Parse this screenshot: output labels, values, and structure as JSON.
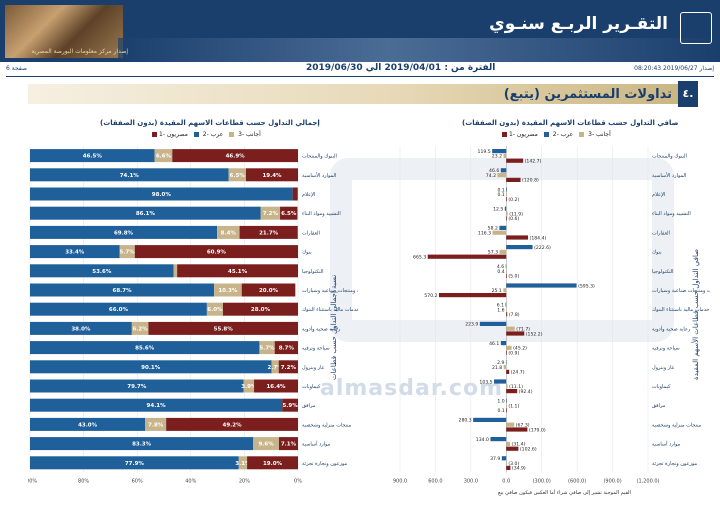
{
  "header": {
    "title": "التقـرير الربـع سنـوي",
    "subtitle": "إصدار مركز معلومات البورصة المصرية"
  },
  "meta": {
    "page": "صفحة 6",
    "period": "الفترة من : 2019/04/01 الي 2019/06/30",
    "issued": "إصدار 2019/06/27 08:20:43"
  },
  "section": {
    "number": "٤.",
    "title": "تداولات المستثمرين (يتبع)"
  },
  "watermark": "almasdar.com",
  "colors": {
    "egyptian": "#1f5f9a",
    "arab": "#c8b48a",
    "foreign": "#7a1e1e"
  },
  "sectors": [
    "البنوك والمنتجات",
    "الموارد الأساسية",
    "الإعلام",
    "التشييد ومواد البناء",
    "العقارات",
    "بنوك",
    "التكنولوجيا",
    "خدمات ومنتجات صناعية وسيارات",
    "خدمات مالية باستثناء البنوك",
    "رعاية صحية وأدوية",
    "سياحة وترفيه",
    "غاز وبترول",
    "كيماويات",
    "مرافق",
    "منتجات منزلية وشخصية",
    "موارد أساسية",
    "موزعون وتجارة تجزئة"
  ],
  "left_chart": {
    "title": "إجمالي التداول حسب قطاعات الاسهم المقيدة (بدون الصفقات)",
    "legend": [
      "مصريون -1",
      "عرب -2",
      "أجانب -3"
    ],
    "side_label": "نسبة إجمالي التداول حسب قطاعات",
    "x_ticks": [
      "100%",
      "80%",
      "60%",
      "40%",
      "20%",
      "0%"
    ],
    "chart_data": {
      "type": "bar",
      "series": [
        {
          "name": "مصريون -1",
          "values": [
            46.5,
            74.1,
            98.0,
            86.1,
            69.8,
            33.4,
            53.6,
            68.7,
            66.0,
            38.0,
            85.6,
            90.1,
            79.7,
            94.1,
            43.0,
            83.3,
            77.9
          ]
        },
        {
          "name": "عرب -2",
          "values": [
            6.6,
            6.5,
            0.0,
            7.2,
            8.4,
            5.7,
            1.3,
            10.3,
            6.0,
            6.2,
            5.7,
            2.7,
            3.9,
            0.0,
            7.8,
            9.6,
            3.1
          ]
        },
        {
          "name": "أجانب -3",
          "values": [
            46.9,
            19.4,
            1.9,
            6.5,
            21.7,
            60.9,
            45.1,
            20.0,
            28.0,
            55.8,
            8.7,
            7.2,
            16.4,
            5.9,
            49.2,
            7.1,
            19.0
          ]
        }
      ],
      "data_labels": [
        [
          "46.5%",
          "6.6%",
          "46.9%"
        ],
        [
          "74.1%",
          "6.5%",
          "19.4%"
        ],
        [
          "98.0%",
          "",
          "1.9%"
        ],
        [
          "86.1%",
          "7.2%",
          "6.5%"
        ],
        [
          "69.8%",
          "8.4%",
          "21.7%"
        ],
        [
          "33.4%",
          "5.7%",
          "60.9%"
        ],
        [
          "53.6%",
          "1.3%",
          "45.1%"
        ],
        [
          "68.7%",
          "10.3%",
          "20.0%"
        ],
        [
          "66.0%",
          "6.0%",
          "28.0%"
        ],
        [
          "38.0%",
          "6.2%",
          "55.8%"
        ],
        [
          "85.6%",
          "5.7%",
          "8.7%"
        ],
        [
          "90.1%",
          "2.7%",
          "7.2%"
        ],
        [
          "79.7%",
          "3.9%",
          "16.4%"
        ],
        [
          "94.1%",
          "",
          "5.9%"
        ],
        [
          "43.0%",
          "7.8%",
          "49.2%"
        ],
        [
          "83.3%",
          "9.6%",
          "7.1%"
        ],
        [
          "77.9%",
          "3.1%",
          "19.0%"
        ]
      ],
      "xlim": [
        0,
        100
      ]
    }
  },
  "right_chart": {
    "title": "صافي التداول حسب قطاعات الاسهم المقيدة (بدون الصفقات)",
    "legend": [
      "مصريون -1",
      "عرب -2",
      "أجانب -3"
    ],
    "side_label": "صافي التداول حسب قطاعات الأسهم المقيدة",
    "x_ticks": [
      "(1,200.0)",
      "(900.0)",
      "(600.0)",
      "(300.0)",
      "0.0",
      "300.0",
      "600.0",
      "900.0"
    ],
    "footnote": "القيم الموجبة تشير إلى صافي شراء أما العكس فيكون صافي بيع",
    "chart_data": {
      "type": "bar",
      "series": [
        {
          "name": "مصريون -1",
          "values": [
            119.5,
            46.6,
            0.1,
            12.5,
            58.2,
            -222.6,
            4.6,
            -595.3,
            6.1,
            223.9,
            46.1,
            2.9,
            103.5,
            1.0,
            280.3,
            134.0,
            37.9
          ]
        },
        {
          "name": "عرب -2",
          "values": [
            23.2,
            74.2,
            0.1,
            -11.9,
            116.3,
            57.3,
            0.4,
            25.1,
            1.6,
            -71.7,
            -45.2,
            21.8,
            -11.1,
            -1.1,
            -67.3,
            -31.4,
            -3.0
          ]
        },
        {
          "name": "أجانب -3",
          "values": [
            -142.7,
            -120.8,
            -0.2,
            -0.6,
            -184.4,
            665.3,
            -5.0,
            570.2,
            -7.8,
            -152.2,
            -0.9,
            -24.7,
            -92.4,
            0.1,
            -179.0,
            -102.6,
            -34.9
          ]
        }
      ],
      "data_labels": [
        [
          "119.5",
          "23.2",
          "(142.7)"
        ],
        [
          "46.6",
          "74.2",
          "(120.8)"
        ],
        [
          "0.1",
          "0.1",
          "(0.2)"
        ],
        [
          "12.5",
          "(11.9)",
          "(0.6)"
        ],
        [
          "58.2",
          "116.3",
          "(184.4)"
        ],
        [
          "(222.6)",
          "57.3",
          "665.3"
        ],
        [
          "4.6",
          "0.4",
          "(5.0)"
        ],
        [
          "(595.3)",
          "25.1",
          "570.2"
        ],
        [
          "6.1",
          "1.6",
          "(7.8)"
        ],
        [
          "223.9",
          "(71.7)",
          "(152.2)"
        ],
        [
          "46.1",
          "(45.2)",
          "(0.9)"
        ],
        [
          "2.9",
          "21.8",
          "(24.7)"
        ],
        [
          "103.5",
          "(11.1)",
          "(92.4)"
        ],
        [
          "1.0",
          "(1.1)",
          "0.1"
        ],
        [
          "280.3",
          "(67.3)",
          "(179.0)"
        ],
        [
          "134.0",
          "(31.4)",
          "(102.6)"
        ],
        [
          "37.9",
          "(3.0)",
          "(34.9)"
        ]
      ],
      "xlim": [
        -1200,
        900
      ]
    }
  }
}
